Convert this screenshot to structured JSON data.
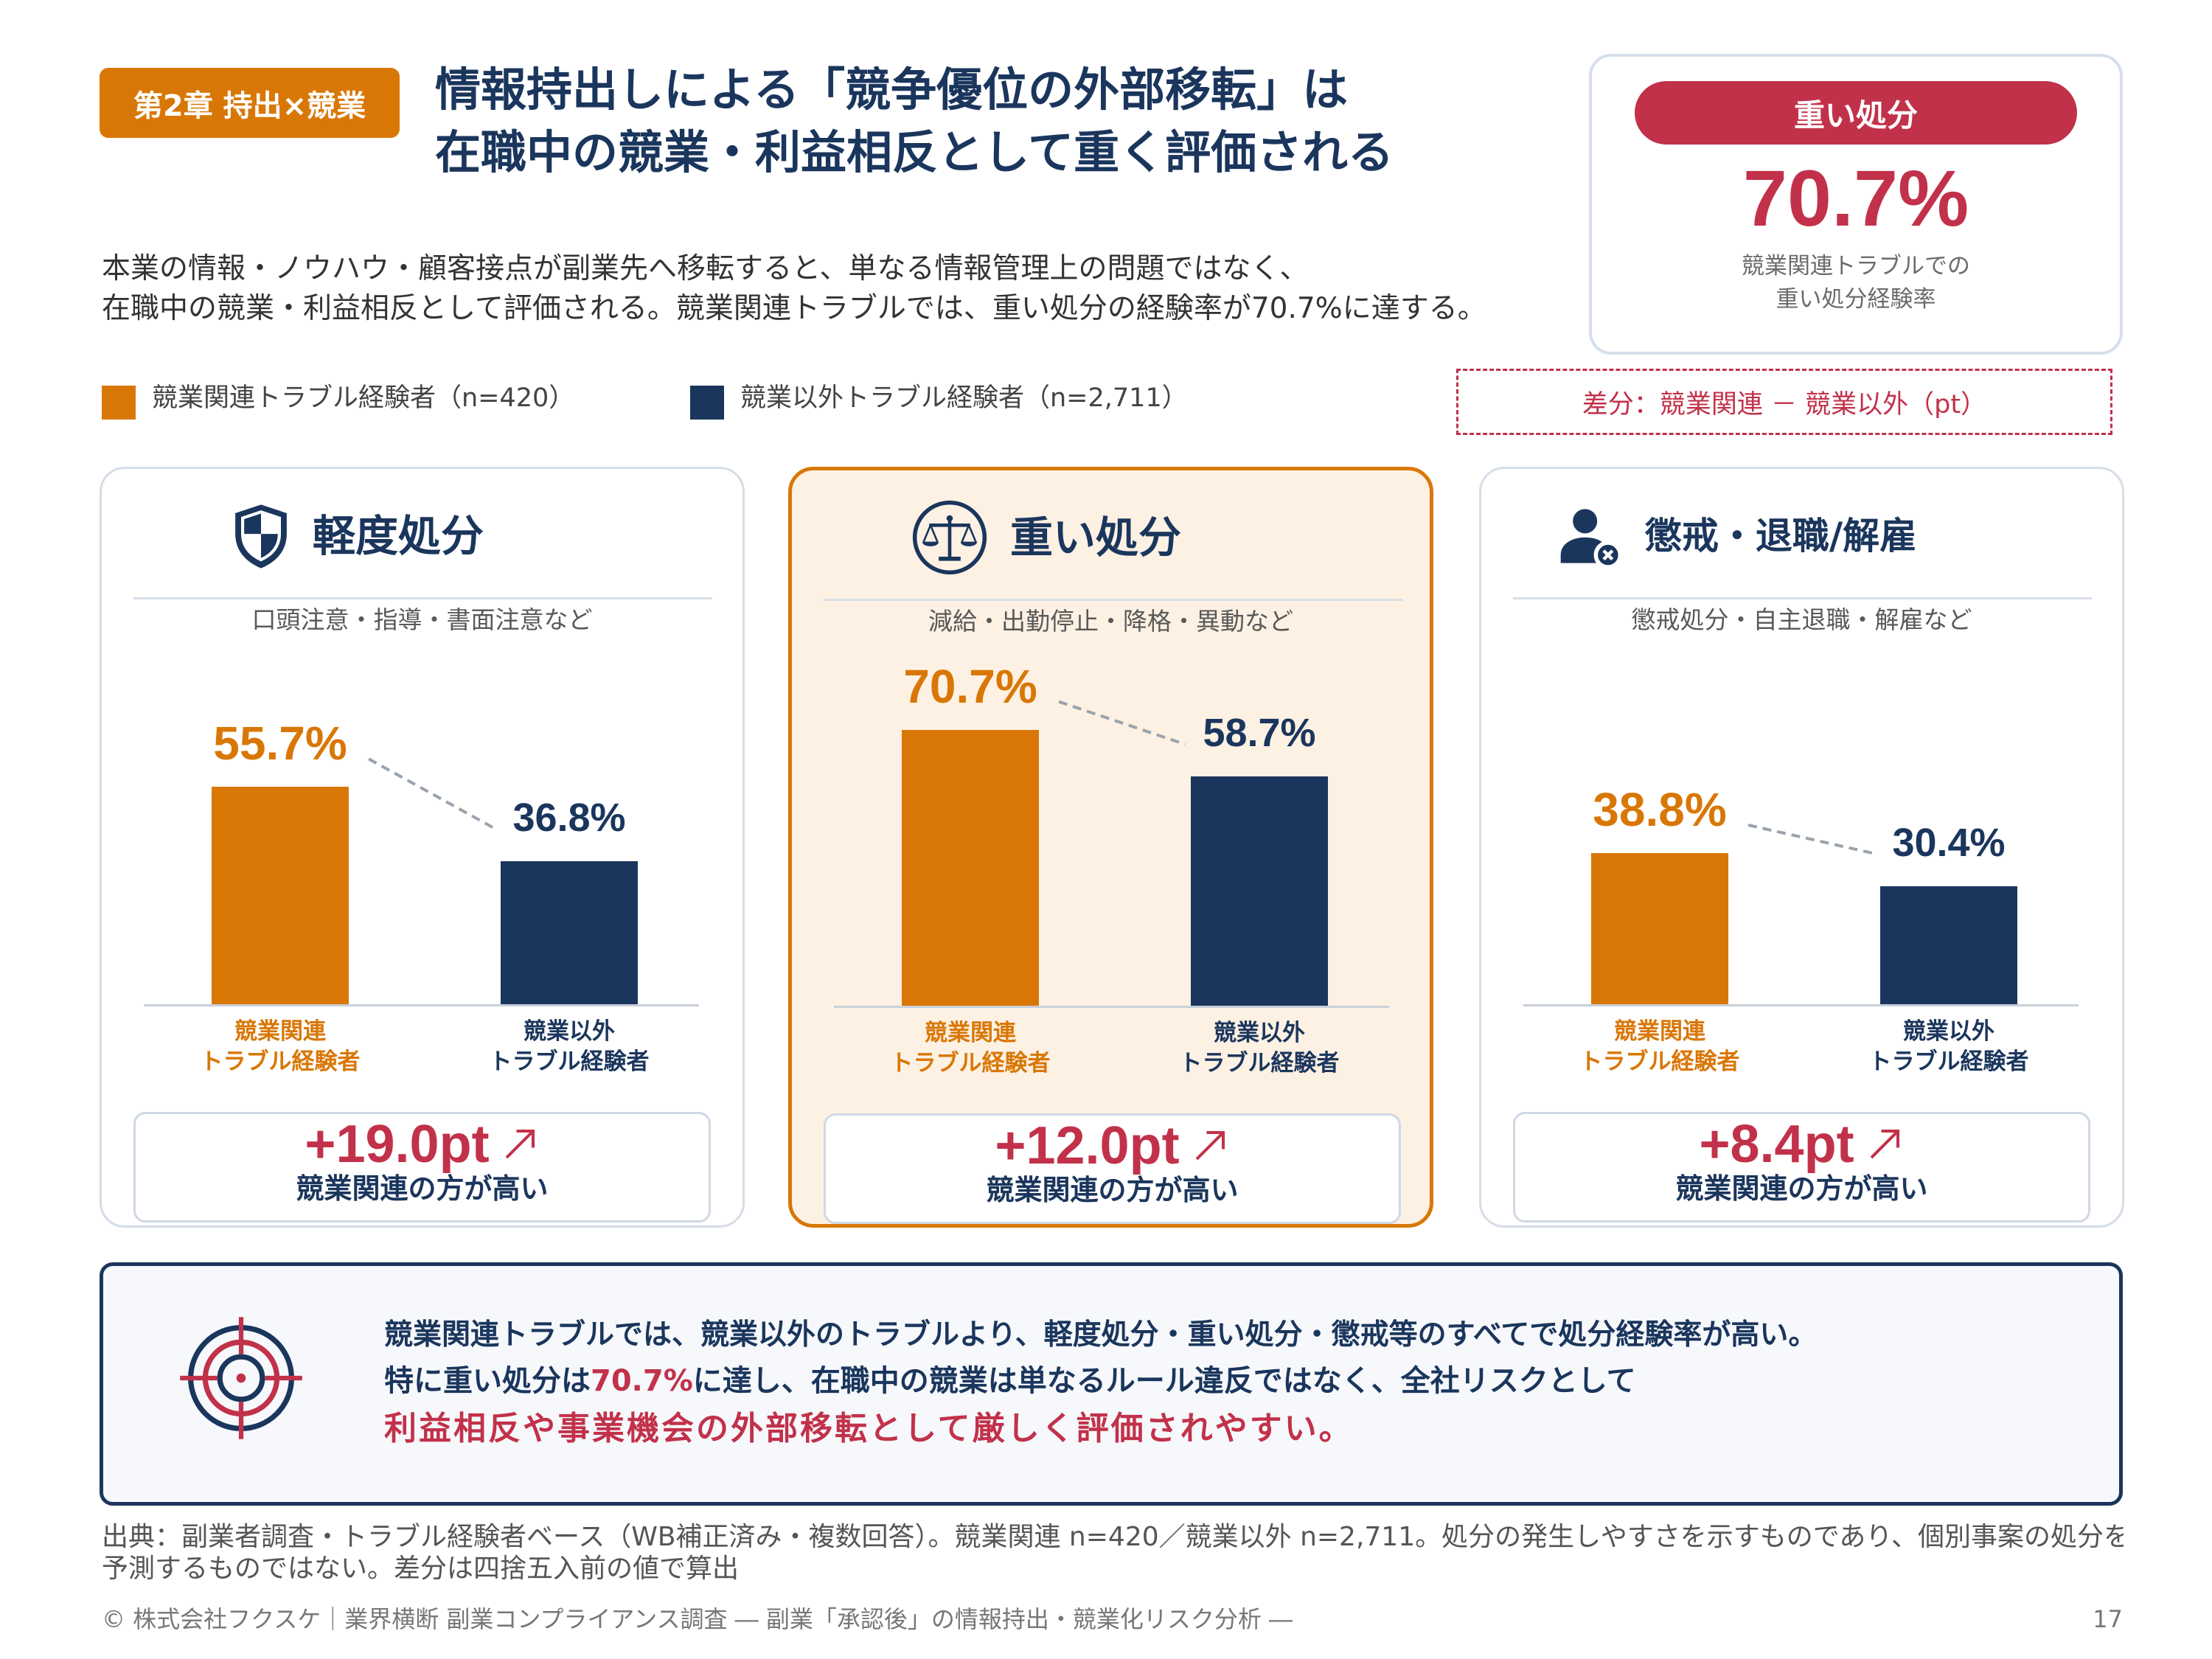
{
  "colors": {
    "orange": "#D97706",
    "navy": "#1B365D",
    "red": "#C2314A",
    "highlight_bg": "#FDF1E3"
  },
  "header": {
    "chapter_badge": "第2章 持出×競業",
    "title_line1": "情報持出しによる「競争優位の外部移転」は",
    "title_line2": "在職中の競業・利益相反として重く評価される"
  },
  "kpi_card": {
    "label": "重い処分",
    "value": "70.7%",
    "caption_line1": "競業関連トラブルでの",
    "caption_line2": "重い処分経験率"
  },
  "intro": {
    "line1": "本業の情報・ノウハウ・顧客接点が副業先へ移転すると、単なる情報管理上の問題ではなく、",
    "line2": "在職中の競業・利益相反として評価される。競業関連トラブルでは、重い処分の経験率が70.7%に達する。"
  },
  "legend": {
    "items": [
      {
        "label": "競業関連トラブル経験者（n=420）",
        "color": "#D97706"
      },
      {
        "label": "競業以外トラブル経験者（n=2,711）",
        "color": "#1B365D"
      }
    ],
    "diff_note": "差分：競業関連 － 競業以外（pt）"
  },
  "panels": [
    {
      "icon": "shield-icon",
      "subtitle": "口頭注意・指導・書面注意など",
      "diff": "+19.0pt",
      "diff_note": "競業関連の方が高い",
      "highlighted": false
    },
    {
      "icon": "scales-icon",
      "subtitle": "減給・出勤停止・降格・異動など",
      "diff": "+12.0pt",
      "diff_note": "競業関連の方が高い",
      "highlighted": true
    },
    {
      "icon": "person-remove-icon",
      "subtitle": "懲戒処分・自主退職・解雇など",
      "diff": "+8.4pt",
      "diff_note": "競業関連の方が高い",
      "highlighted": false
    }
  ],
  "chart_data": [
    {
      "type": "bar",
      "title": "軽度処分",
      "categories": [
        "競業関連\nトラブル経験者",
        "競業以外\nトラブル経験者"
      ],
      "values": [
        55.7,
        36.8
      ],
      "value_labels": [
        "55.7%",
        "36.8%"
      ]
    },
    {
      "type": "bar",
      "title": "重い処分",
      "categories": [
        "競業関連\nトラブル経験者",
        "競業以外\nトラブル経験者"
      ],
      "values": [
        70.7,
        58.7
      ],
      "value_labels": [
        "70.7%",
        "58.7%"
      ]
    },
    {
      "type": "bar",
      "title": "懲戒・退職/解雇",
      "categories": [
        "競業関連\nトラブル経験者",
        "競業以外\nトラブル経験者"
      ],
      "values": [
        38.8,
        30.4
      ],
      "value_labels": [
        "38.8%",
        "30.4%"
      ]
    }
  ],
  "summary": {
    "line1": "競業関連トラブルでは、競業以外のトラブルより、軽度処分・重い処分・懲戒等のすべてで処分経験率が高い。",
    "line2_prefix": "特に重い処分は",
    "line2_highlight": "70.7%",
    "line2_suffix": "に達し、在職中の競業は単なるルール違反ではなく、全社リスクとして",
    "line3": "利益相反や事業機会の外部移転として厳しく評価されやすい。"
  },
  "source": {
    "line1": "出典：副業者調査・トラブル経験者ベース（WB補正済み・複数回答）。競業関連 n=420／競業以外 n=2,711。処分の発生しやすさを示すものであり、個別事案の処分を",
    "line2": "予測するものではない。差分は四捨五入前の値で算出"
  },
  "footer": {
    "credit": "© 株式会社フクスケ｜業界横断 副業コンプライアンス調査 ― 副業「承認後」の情報持出・競業化リスク分析 ―",
    "page_number": "17"
  }
}
